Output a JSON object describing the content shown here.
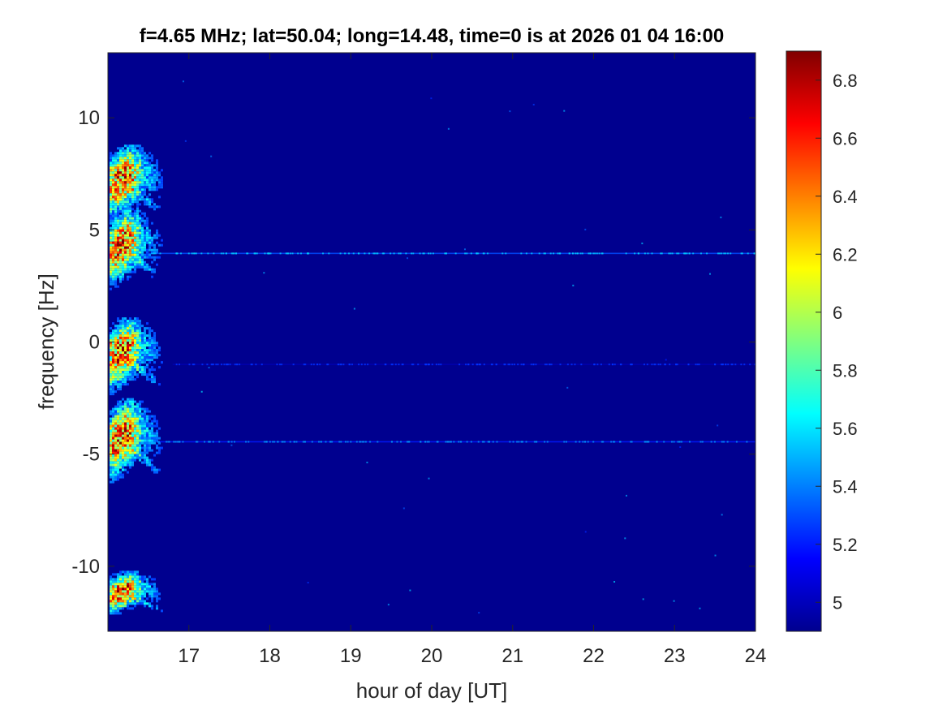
{
  "chart_data": {
    "type": "heatmap",
    "title": "f=4.65 MHz;  lat=50.04; long=14.48, time=0 is at 2026 01 04 16:00",
    "xlabel": "hour of day [UT]",
    "ylabel": "frequency [Hz]",
    "xlim": [
      16.0,
      24.0
    ],
    "ylim": [
      -12.9,
      12.9
    ],
    "x_ticks": [
      17,
      18,
      19,
      20,
      21,
      22,
      23,
      24
    ],
    "y_ticks": [
      -10,
      -5,
      0,
      5,
      10
    ],
    "colormap": "jet",
    "background_color": "#00008f",
    "colorbar": {
      "range": [
        4.9,
        6.9
      ],
      "ticks": [
        5,
        5.2,
        5.4,
        5.6,
        5.8,
        6,
        6.2,
        6.4,
        6.6,
        6.8
      ]
    },
    "features": [
      {
        "kind": "blob",
        "t_start": 16.02,
        "t_end": 16.75,
        "f_center": 6.9,
        "f_width": 1.9,
        "peak": 6.9
      },
      {
        "kind": "blob",
        "t_start": 16.02,
        "t_end": 16.72,
        "f_center": 4.0,
        "f_width": 2.0,
        "peak": 6.9
      },
      {
        "kind": "blob",
        "t_start": 16.02,
        "t_end": 16.72,
        "f_center": -0.8,
        "f_width": 1.9,
        "peak": 6.9
      },
      {
        "kind": "blob",
        "t_start": 16.02,
        "t_end": 16.72,
        "f_center": -4.6,
        "f_width": 2.1,
        "peak": 6.9
      },
      {
        "kind": "blob",
        "t_start": 16.02,
        "t_end": 16.75,
        "f_center": -11.3,
        "f_width": 1.1,
        "peak": 6.9
      },
      {
        "kind": "line",
        "t_start": 16.5,
        "t_end": 24.0,
        "f": 3.95,
        "level": 5.3
      },
      {
        "kind": "line",
        "t_start": 16.6,
        "t_end": 24.0,
        "f": -4.45,
        "level": 5.2
      },
      {
        "kind": "line",
        "t_start": 16.8,
        "t_end": 24.0,
        "f": -1.0,
        "level": 5.0
      }
    ]
  }
}
